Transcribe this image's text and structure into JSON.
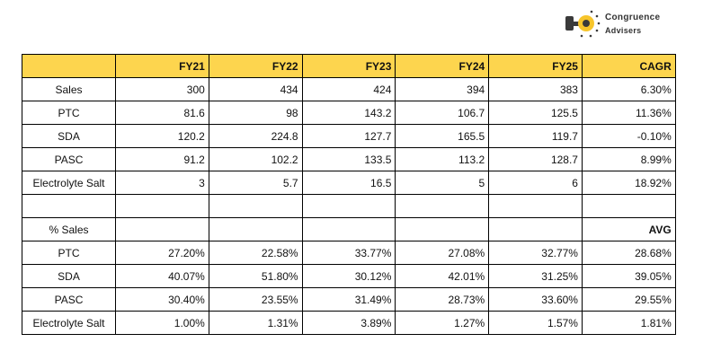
{
  "logo": {
    "line1": "Congruence",
    "line2": "Advisers"
  },
  "table": {
    "header": [
      null,
      "FY21",
      "FY22",
      "FY23",
      "FY24",
      "FY25",
      "CAGR"
    ],
    "rows": [
      [
        "Sales",
        "300",
        "434",
        "424",
        "394",
        "383",
        "6.30%"
      ],
      [
        "PTC",
        "81.6",
        "98",
        "143.2",
        "106.7",
        "125.5",
        "11.36%"
      ],
      [
        "SDA",
        "120.2",
        "224.8",
        "127.7",
        "165.5",
        "119.7",
        "-0.10%"
      ],
      [
        "PASC",
        "91.2",
        "102.2",
        "133.5",
        "113.2",
        "128.7",
        "8.99%"
      ],
      [
        "Electrolyte Salt",
        "3",
        "5.7",
        "16.5",
        "5",
        "6",
        "18.92%"
      ],
      [
        null,
        null,
        null,
        null,
        null,
        null,
        null
      ],
      [
        "% Sales",
        null,
        null,
        null,
        null,
        null,
        "AVG"
      ],
      [
        "PTC",
        "27.20%",
        "22.58%",
        "33.77%",
        "27.08%",
        "32.77%",
        "28.68%"
      ],
      [
        "SDA",
        "40.07%",
        "51.80%",
        "30.12%",
        "42.01%",
        "31.25%",
        "39.05%"
      ],
      [
        "PASC",
        "30.40%",
        "23.55%",
        "31.49%",
        "28.73%",
        "33.60%",
        "29.55%"
      ],
      [
        "Electrolyte Salt",
        "1.00%",
        "1.31%",
        "3.89%",
        "1.27%",
        "1.57%",
        "1.81%"
      ]
    ]
  }
}
